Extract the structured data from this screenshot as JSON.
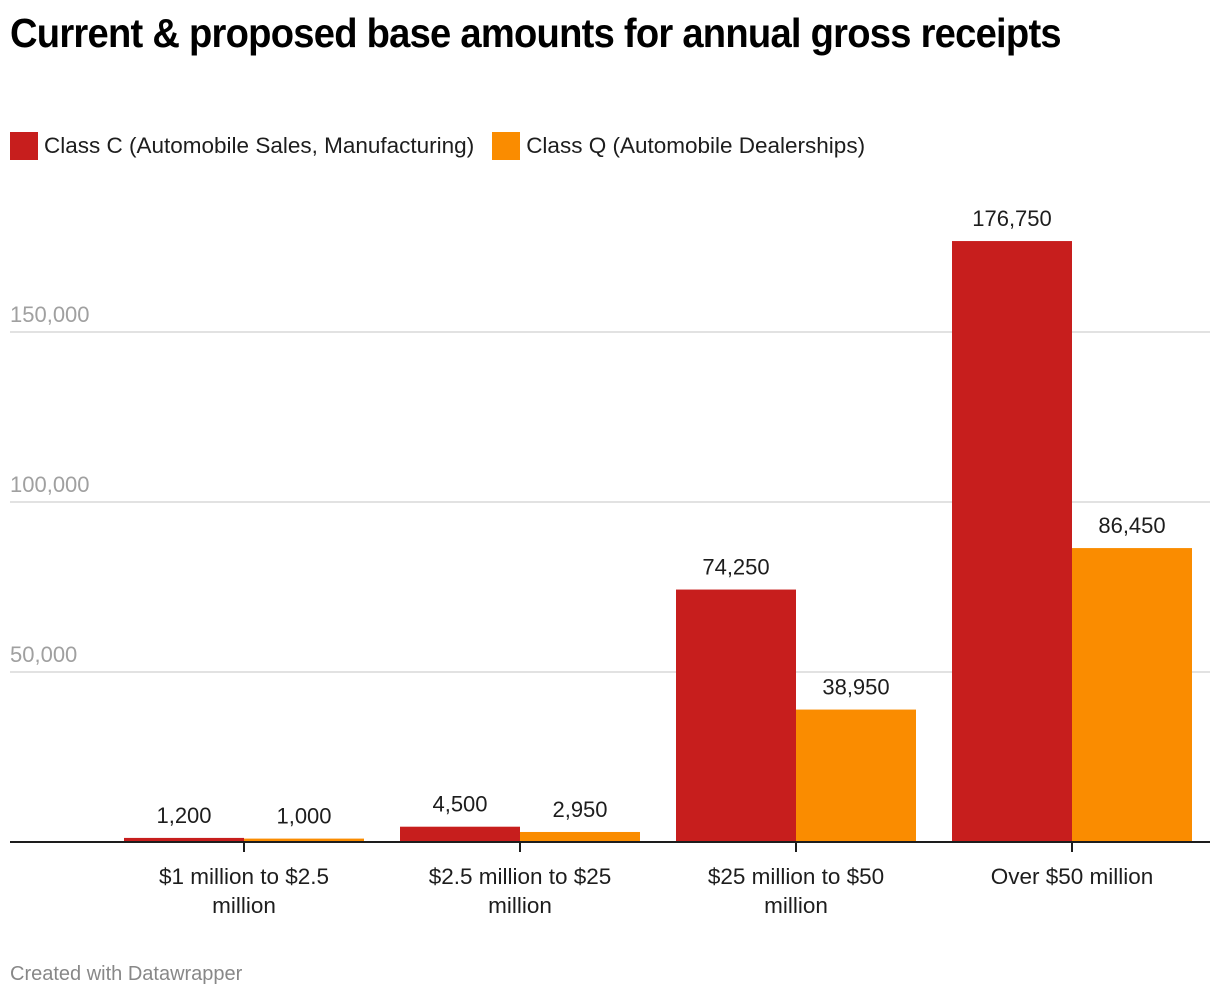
{
  "chart_data": {
    "type": "bar",
    "title": "Current & proposed base amounts for annual gross receipts",
    "xlabel": "",
    "ylabel": "",
    "categories": [
      [
        "$1 million to $2.5",
        "million"
      ],
      [
        "$2.5 million to $25",
        "million"
      ],
      [
        "$25 million to $50",
        "million"
      ],
      [
        "Over $50 million"
      ]
    ],
    "series": [
      {
        "name": "Class C (Automobile Sales, Manufacturing)",
        "color": "#c71e1d",
        "values": [
          1200,
          4500,
          74250,
          176750
        ],
        "labels": [
          "1,200",
          "4,500",
          "74,250",
          "176,750"
        ]
      },
      {
        "name": "Class Q (Automobile Dealerships)",
        "color": "#fa8c00",
        "values": [
          1000,
          2950,
          38950,
          86450
        ],
        "labels": [
          "1,000",
          "2,950",
          "38,950",
          "86,450"
        ]
      }
    ],
    "yticks": [
      50000,
      100000,
      150000
    ],
    "ytick_labels": [
      "50,000",
      "100,000",
      "150,000"
    ],
    "ylim": [
      0,
      180000
    ],
    "grid": true,
    "legend_position": "top-left"
  },
  "footer": "Created with Datawrapper"
}
